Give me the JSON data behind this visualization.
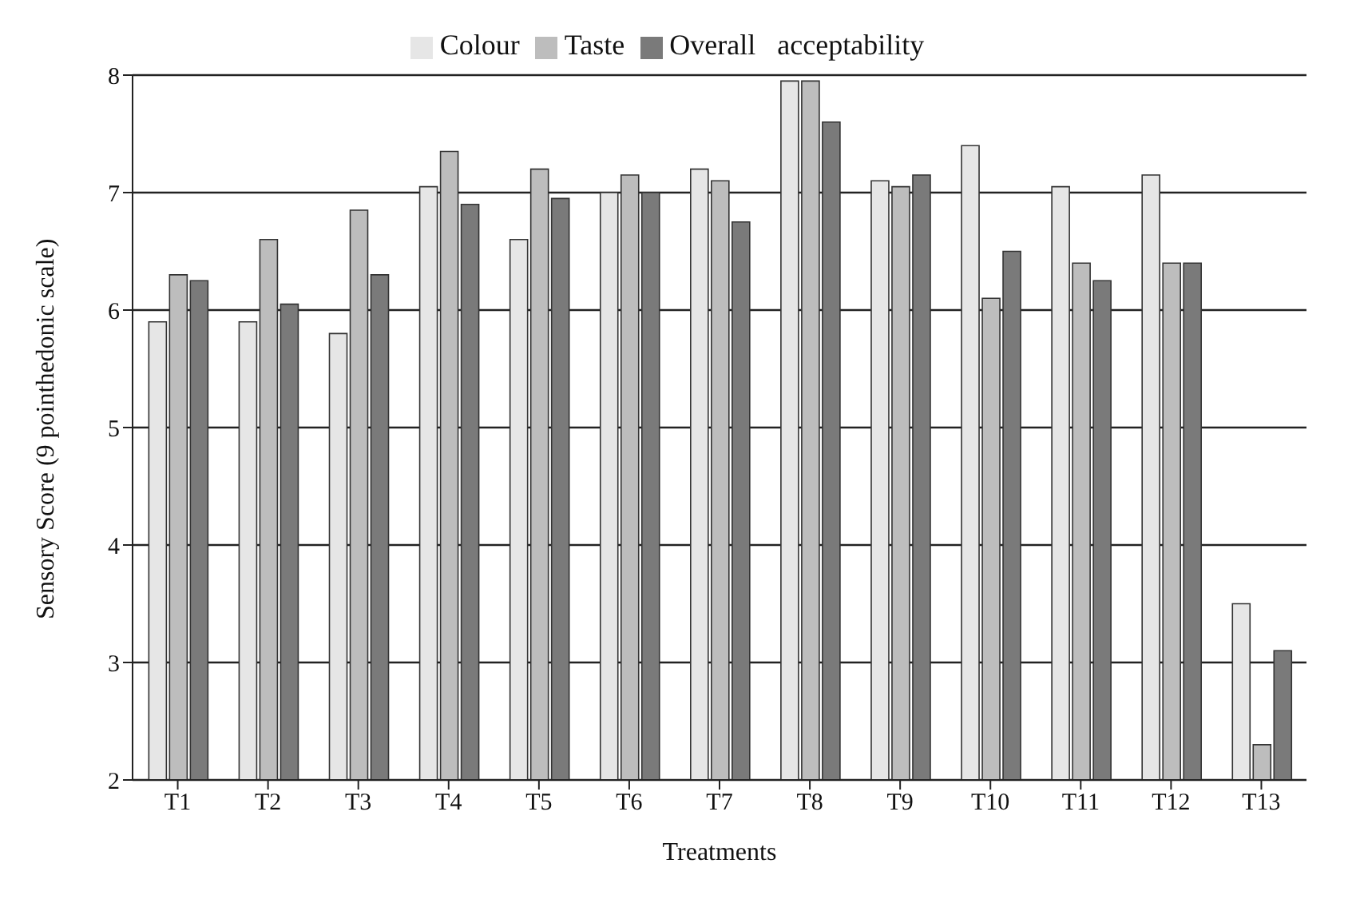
{
  "chart_data": {
    "type": "bar",
    "xlabel": "Treatments",
    "ylabel": "Sensory Score (9 pointhedonic scale)",
    "categories": [
      "T1",
      "T2",
      "T3",
      "T4",
      "T5",
      "T6",
      "T7",
      "T8",
      "T9",
      "T10",
      "T11",
      "T12",
      "T13"
    ],
    "series": [
      {
        "name": "Colour",
        "color": "#e6e6e6",
        "values": [
          5.9,
          5.9,
          5.8,
          7.05,
          6.6,
          7.0,
          7.2,
          7.95,
          7.1,
          7.4,
          7.05,
          7.15,
          3.5
        ]
      },
      {
        "name": "Taste",
        "color": "#bdbdbd",
        "values": [
          6.3,
          6.6,
          6.85,
          7.35,
          7.2,
          7.15,
          7.1,
          7.95,
          7.05,
          6.1,
          6.4,
          6.4,
          2.3
        ]
      },
      {
        "name": "Overall   acceptability",
        "color": "#7a7a7a",
        "values": [
          6.25,
          6.05,
          6.3,
          6.9,
          6.95,
          7.0,
          6.75,
          7.6,
          7.15,
          6.5,
          6.25,
          6.4,
          3.1
        ]
      }
    ],
    "ylim": [
      2,
      8
    ],
    "yticks": [
      2,
      3,
      4,
      5,
      6,
      7,
      8
    ],
    "grid": "y",
    "legend": "top"
  }
}
